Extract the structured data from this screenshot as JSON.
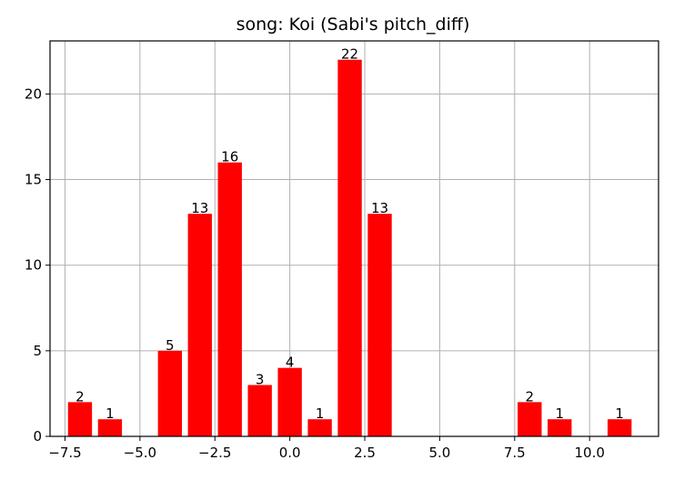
{
  "chart_data": {
    "type": "bar",
    "title": "song: Koi (Sabi's pitch_diff)",
    "xlabel": "",
    "ylabel": "",
    "x": [
      -7,
      -6,
      -4,
      -3,
      -2,
      -1,
      0,
      1,
      2,
      3,
      8,
      9,
      11
    ],
    "values": [
      2,
      1,
      5,
      13,
      16,
      3,
      4,
      1,
      22,
      13,
      2,
      1,
      1
    ],
    "data_labels": [
      "2",
      "1",
      "5",
      "13",
      "16",
      "3",
      "4",
      "1",
      "22",
      "13",
      "2",
      "1",
      "1"
    ],
    "xlim": [
      -8.0,
      12.3
    ],
    "ylim": [
      0,
      23.1
    ],
    "xticks": [
      -7.5,
      -5.0,
      -2.5,
      0.0,
      2.5,
      5.0,
      7.5,
      10.0
    ],
    "xtick_labels": [
      "−7.5",
      "−5.0",
      "−2.5",
      "0.0",
      "2.5",
      "5.0",
      "7.5",
      "10.0"
    ],
    "yticks": [
      0,
      5,
      10,
      15,
      20
    ],
    "ytick_labels": [
      "0",
      "5",
      "10",
      "15",
      "20"
    ],
    "bar_width": 0.8,
    "grid": true,
    "colors": {
      "bar": "#ff0000",
      "grid": "#b0b0b0"
    }
  }
}
